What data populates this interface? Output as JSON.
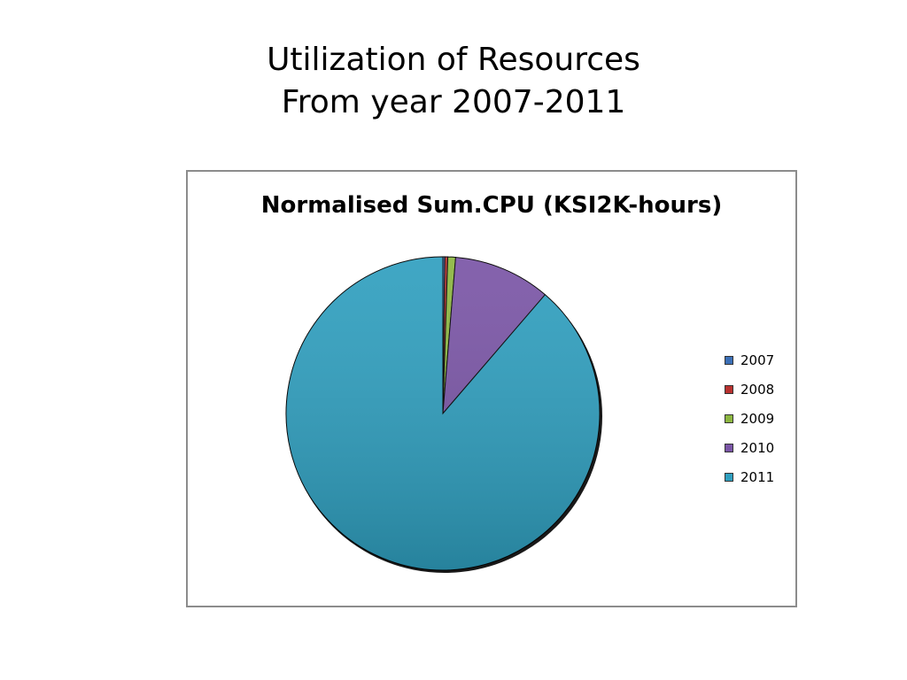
{
  "slide": {
    "title_line1": "Utilization of Resources",
    "title_line2": "From year 2007-2011"
  },
  "chart_data": {
    "type": "pie",
    "title": "Normalised Sum.CPU (KSI2K-hours)",
    "categories": [
      "2007",
      "2008",
      "2009",
      "2010",
      "2011"
    ],
    "values": [
      0.2,
      0.3,
      0.8,
      10.0,
      88.7
    ],
    "unit": "percent of total (estimated)",
    "colors": [
      "#3b6fb6",
      "#b8312f",
      "#8cb640",
      "#7a55a6",
      "#2f9fbf"
    ],
    "legend_position": "right",
    "start_angle": "top, clockwise"
  }
}
